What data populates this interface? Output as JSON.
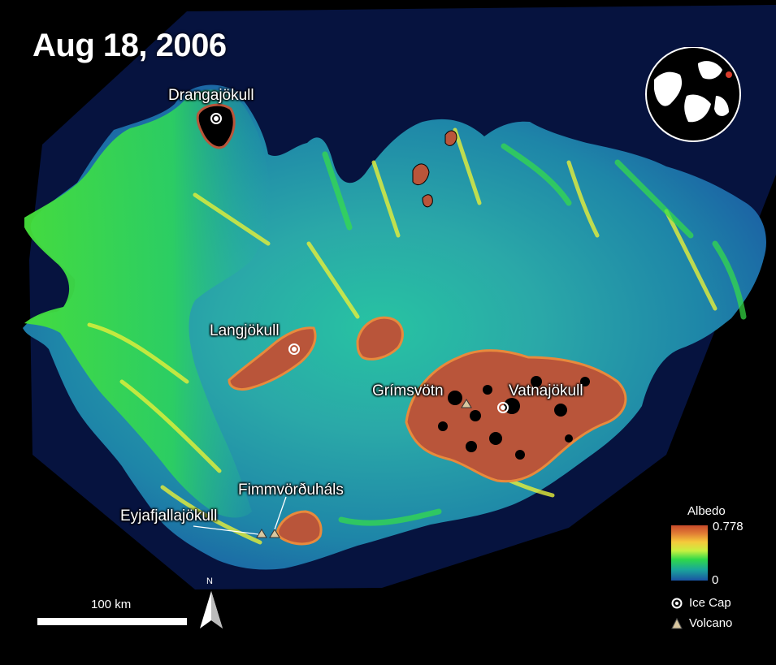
{
  "title": "Aug 18, 2006",
  "places": {
    "drangajokull": "Drangajökull",
    "langjokull": "Langjökull",
    "grimsvotn": "Grímsvötn",
    "vatnajokull": "Vatnajökull",
    "fimmvorduhals": "Fimmvörðuháls",
    "eyjafjallajokull": "Eyjafjallajökull"
  },
  "legend": {
    "title": "Albedo",
    "max": "0.778",
    "min": "0",
    "ice_cap": "Ice Cap",
    "volcano": "Volcano"
  },
  "scale": {
    "label": "100 km"
  },
  "north": "N",
  "colors": {
    "background": "#000000",
    "land_blue": "#1a53a3",
    "land_cyan": "#1aa79a",
    "land_green": "#2fd84a",
    "land_yellow": "#d8ee3c",
    "ice_red": "#b9553a",
    "volcano_fill": "#d9c7a0"
  }
}
